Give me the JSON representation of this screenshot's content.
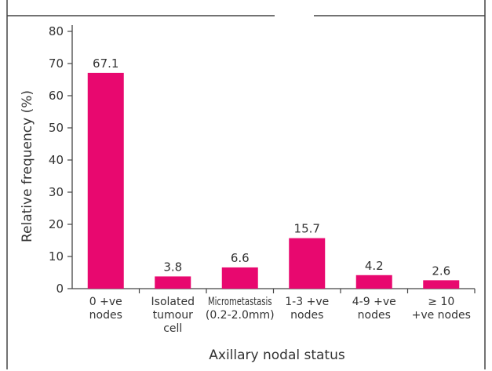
{
  "chart_data": {
    "type": "bar",
    "title": "",
    "xlabel": "Axillary nodal status",
    "ylabel": "Relative frequency (%)",
    "ylim": [
      0,
      80
    ],
    "yticks": [
      "0",
      "10",
      "20",
      "30",
      "40",
      "50",
      "60",
      "70",
      "80"
    ],
    "grid": false,
    "categories": [
      [
        "0 +ve",
        "nodes"
      ],
      [
        "Isolated",
        "tumour",
        "cell"
      ],
      [
        "Micrometastasis",
        "(0.2-2.0mm)"
      ],
      [
        "1-3 +ve",
        "nodes"
      ],
      [
        "4-9 +ve",
        "nodes"
      ],
      [
        "≥ 10",
        "+ve nodes"
      ]
    ],
    "values": [
      67.1,
      3.8,
      6.6,
      15.7,
      4.2,
      2.6
    ],
    "value_labels": [
      "67.1",
      "3.8",
      "6.6",
      "15.7",
      "4.2",
      "2.6"
    ],
    "bar_color": "#e8086f"
  }
}
